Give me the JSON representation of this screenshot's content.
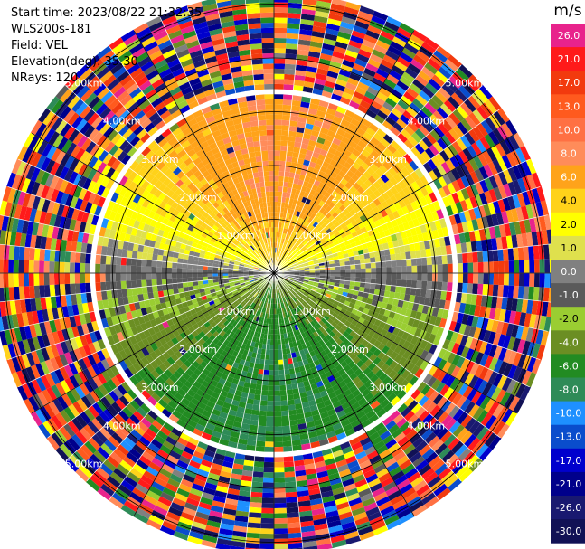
{
  "header": {
    "start_time": "Start time: 2023/08/22 21:32:35",
    "instrument": "WLS200s-181",
    "field": "Field: VEL",
    "elevation": "Elevation(deg): 35.30",
    "nrays": "NRays: 120"
  },
  "chart_data": {
    "type": "heatmap",
    "projection": "polar-ppi",
    "nrays": 120,
    "range_rings_km": [
      1.0,
      2.0,
      3.0,
      4.0,
      5.0
    ],
    "ring_labels": [
      "1.00km",
      "2.00km",
      "3.00km",
      "4.00km",
      "5.00km"
    ],
    "max_range_km": 5.2,
    "azimuth_spokes_deg": [
      0,
      30,
      60,
      90,
      120,
      150,
      180,
      210,
      240,
      270,
      300,
      330
    ],
    "colorbar": {
      "unit": "m/s",
      "ticks": [
        "26.0",
        "21.0",
        "17.0",
        "13.0",
        "10.0",
        "8.0",
        "6.0",
        "4.0",
        "2.0",
        "1.0",
        "0.0",
        "-1.0",
        "-2.0",
        "-4.0",
        "-6.0",
        "-8.0",
        "-10.0",
        "-13.0",
        "-17.0",
        "-21.0",
        "-26.0",
        "-30.0"
      ],
      "colors": [
        "#e8238c",
        "#ff1a1a",
        "#f23a0e",
        "#ff5a1e",
        "#ff7043",
        "#ff8c5a",
        "#ffa31a",
        "#ffd21a",
        "#ffff00",
        "#dfe04d",
        "#808080",
        "#5a5a5a",
        "#9acd32",
        "#6b8e23",
        "#228b22",
        "#2e8b57",
        "#1e90ff",
        "#0a4dcc",
        "#0000cd",
        "#00008b",
        "#191970",
        "#111155"
      ]
    },
    "velocity_pattern": {
      "description_levels": "Velocities shown by color: toward-north sector positive (yellow/orange ~2 to 8 m/s), toward-south sector negative (green ~-2 to -6 m/s), east/west near 0 m/s (gray); outer ranges beyond ~3.5 km are noisy.",
      "north_peak_ms": 8.0,
      "south_peak_ms": -6.0,
      "clean_range_km": 3.2
    }
  }
}
